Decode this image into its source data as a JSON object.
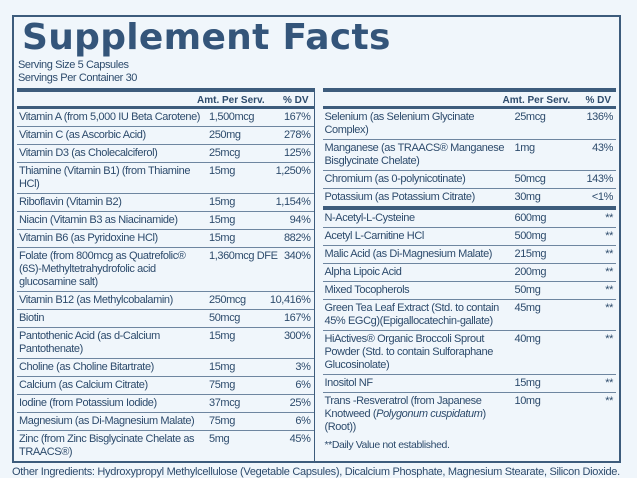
{
  "title": "Supplement Facts",
  "serving_size": "Serving Size 5 Capsules",
  "servings_per_container": "Servings Per Container 30",
  "headers": {
    "amount": "Amt. Per Serv.",
    "dv": "% DV"
  },
  "left": [
    {
      "name": "Vitamin A (from 5,000 IU Beta Carotene)",
      "amount": "1,500mcg",
      "dv": "167%"
    },
    {
      "name": "Vitamin C (as Ascorbic Acid)",
      "amount": "250mg",
      "dv": "278%"
    },
    {
      "name": "Vitamin D3 (as Cholecalciferol)",
      "amount": "25mcg",
      "dv": "125%"
    },
    {
      "name": "Thiamine (Vitamin B1) (from Thiamine HCl)",
      "amount": "15mg",
      "dv": "1,250%"
    },
    {
      "name": "Riboflavin (Vitamin B2)",
      "amount": "15mg",
      "dv": "1,154%"
    },
    {
      "name": "Niacin (Vitamin B3 as Niacinamide)",
      "amount": "15mg",
      "dv": "94%"
    },
    {
      "name": "Vitamin B6 (as Pyridoxine HCl)",
      "amount": "15mg",
      "dv": "882%"
    },
    {
      "name": "Folate (from 800mcg as Quatrefolic® (6S)-Methyltetrahydrofolic acid glucosamine salt)",
      "amount": "1,360mcg DFE",
      "dv": "340%"
    },
    {
      "name": "Vitamin B12 (as Methylcobalamin)",
      "amount": "250mcg",
      "dv": "10,416%"
    },
    {
      "name": "Biotin",
      "amount": "50mcg",
      "dv": "167%"
    },
    {
      "name": "Pantothenic Acid (as d-Calcium Pantothenate)",
      "amount": "15mg",
      "dv": "300%"
    },
    {
      "name": "Choline (as Choline Bitartrate)",
      "amount": "15mg",
      "dv": "3%"
    },
    {
      "name": "Calcium (as Calcium Citrate)",
      "amount": "75mg",
      "dv": "6%"
    },
    {
      "name": "Iodine (from Potassium Iodide)",
      "amount": "37mcg",
      "dv": "25%"
    },
    {
      "name": "Magnesium (as Di-Magnesium Malate)",
      "amount": "75mg",
      "dv": "6%"
    },
    {
      "name": "Zinc (from Zinc Bisglycinate Chelate as TRAACS®)",
      "amount": "5mg",
      "dv": "45%"
    }
  ],
  "right_minerals": [
    {
      "name": "Selenium (as Selenium Glycinate Complex)",
      "amount": "25mcg",
      "dv": "136%"
    },
    {
      "name": "Manganese (as TRAACS® Manganese Bisglycinate Chelate)",
      "amount": "1mg",
      "dv": "43%"
    },
    {
      "name": "Chromium (as 0-polynicotinate)",
      "amount": "50mcg",
      "dv": "143%"
    },
    {
      "name": "Potassium (as Potassium Citrate)",
      "amount": "30mg",
      "dv": "<1%"
    }
  ],
  "right_other": [
    {
      "name": "N-Acetyl-L-Cysteine",
      "amount": "600mg",
      "dv": "**"
    },
    {
      "name": "Acetyl L-Carnitine HCl",
      "amount": "500mg",
      "dv": "**"
    },
    {
      "name": "Malic Acid (as Di-Magnesium Malate)",
      "amount": "215mg",
      "dv": "**"
    },
    {
      "name": "Alpha Lipoic Acid",
      "amount": "200mg",
      "dv": "**"
    },
    {
      "name": "Mixed Tocopherols",
      "amount": "50mg",
      "dv": "**"
    },
    {
      "name": "Green Tea Leaf Extract (Std. to contain 45% EGCg)(Epigallocatechin-gallate)",
      "amount": "45mg",
      "dv": "**"
    },
    {
      "name": "HiActives® Organic Broccoli Sprout Powder (Std. to contain Sulforaphane Glucosinolate)",
      "amount": "40mg",
      "dv": "**"
    },
    {
      "name": "Inositol NF",
      "amount": "15mg",
      "dv": "**"
    }
  ],
  "resveratrol": {
    "name_a": "Trans -Resveratrol (from Japanese Knotweed (",
    "name_italic": "Polygonum cuspidatum",
    "name_b": ") (Root))",
    "amount": "10mg",
    "dv": "**"
  },
  "footnote": "**Daily Value not established.",
  "other_ingredients": "Other Ingredients: Hydroxypropyl Methylcellulose (Vegetable Capsules), Dicalcium Phosphate, Magnesium Stearate, Silicon Dioxide.",
  "colors": {
    "text": "#2d4b6c",
    "background": "#f0f6fb",
    "border": "#3d5c7c"
  }
}
